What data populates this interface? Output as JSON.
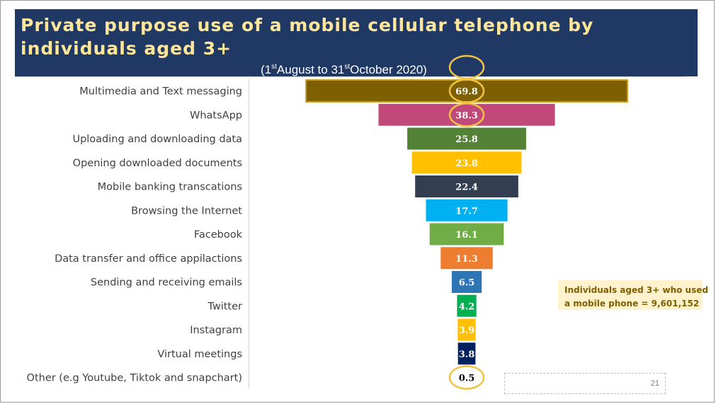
{
  "header": {
    "title": "Private purpose use of a mobile cellular telephone by individuals aged 3+",
    "subtitle_open": "(1",
    "subtitle_sup1": "st",
    "subtitle_mid": "August to 31",
    "subtitle_sup2": "st",
    "subtitle_close": "October 2020)"
  },
  "note": {
    "line1": "Individuals aged 3+  who used",
    "line2": "a mobile phone = 9,601,152"
  },
  "page_number": "21",
  "colors": {
    "header_bg": "#1f3864",
    "title_text": "#ffe699",
    "highlight_circle": "#f2c244",
    "note_bg": "#fff2cc",
    "note_text": "#7f6000"
  },
  "chart_data": {
    "type": "bar",
    "orientation": "horizontal",
    "style": "funnel (bars centered)",
    "unit": "percent",
    "categories": [
      "Multimedia and Text messaging",
      "WhatsApp",
      "Uploading and downloading data",
      "Opening downloaded documents",
      "Mobile banking transcations",
      "Browsing the Internet",
      "Facebook",
      "Data transfer and office appilactions",
      "Sending and receiving emails",
      "Twitter",
      "Instagram",
      "Virtual meetings",
      "Other (e.g Youtube, Tiktok and snapchart)"
    ],
    "values": [
      69.8,
      38.3,
      25.8,
      23.8,
      22.4,
      17.7,
      16.1,
      11.3,
      6.5,
      4.2,
      3.9,
      3.8,
      0.5
    ],
    "value_labels": [
      "69.8",
      "38.3",
      "25.8",
      "23.8",
      "22.4",
      "17.7",
      "16.1",
      "11.3",
      "6.5",
      "4.2",
      "3.9",
      "3.8",
      "0.5"
    ],
    "bar_colors": [
      "#7f6000",
      "#c0497a",
      "#538135",
      "#ffc000",
      "#333f50",
      "#00b0f0",
      "#70ad47",
      "#ed7d31",
      "#2e75b6",
      "#00b050",
      "#ffc000",
      "#002060",
      "#ffffff"
    ],
    "highlighted_categories": [
      "Multimedia and Text messaging",
      "WhatsApp",
      "Other (e.g Youtube, Tiktok and snapchart)"
    ],
    "grid": false,
    "legend": "none"
  }
}
